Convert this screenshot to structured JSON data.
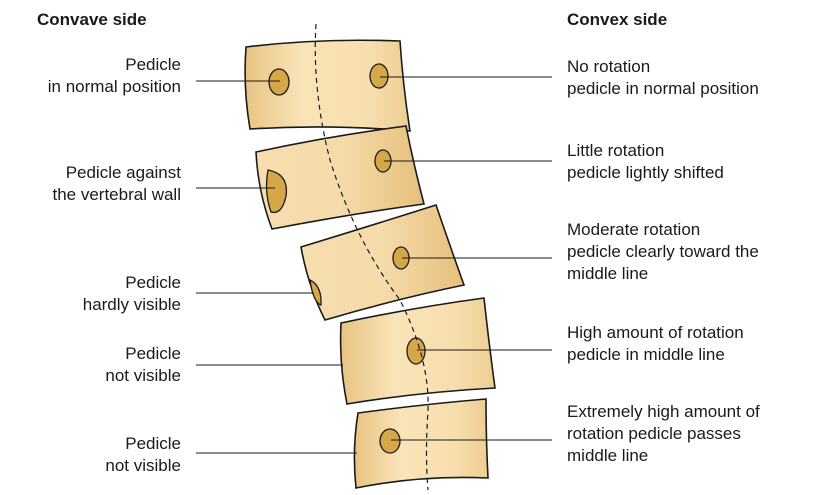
{
  "headers": {
    "concave": "Convave side",
    "convex": "Convex side"
  },
  "left_labels": [
    {
      "lines": [
        "Pedicle",
        "in normal position"
      ]
    },
    {
      "lines": [
        "Pedicle against",
        "the vertebral wall"
      ]
    },
    {
      "lines": [
        "Pedicle",
        "hardly visible"
      ]
    },
    {
      "lines": [
        "Pedicle",
        "not visible"
      ]
    },
    {
      "lines": [
        "Pedicle",
        "not visible"
      ]
    }
  ],
  "right_labels": [
    {
      "lines": [
        "No rotation",
        "pedicle in normal position"
      ]
    },
    {
      "lines": [
        "Little rotation",
        "pedicle lightly shifted"
      ]
    },
    {
      "lines": [
        "Moderate rotation",
        "pedicle clearly toward the",
        "middle line"
      ]
    },
    {
      "lines": [
        "High amount of rotation",
        "pedicle in middle line"
      ]
    },
    {
      "lines": [
        "Extremely high amount of",
        "rotation pedicle passes",
        "middle line"
      ]
    }
  ],
  "colors": {
    "vertebra_light": "#f8e2b4",
    "vertebra_dark": "#e6bf7a",
    "pedicle": "#d6a747",
    "outline": "#1a1a1a"
  }
}
